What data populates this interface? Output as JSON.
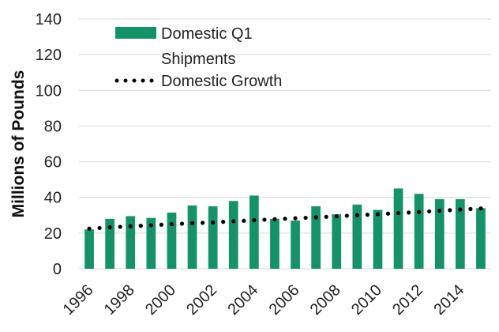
{
  "chart_data": {
    "type": "bar",
    "x": [
      1996,
      1997,
      1998,
      1999,
      2000,
      2001,
      2002,
      2003,
      2004,
      2005,
      2006,
      2007,
      2008,
      2009,
      2010,
      2011,
      2012,
      2013,
      2014,
      2015
    ],
    "x_tick_labels": [
      "1996",
      "1998",
      "2000",
      "2002",
      "2004",
      "2006",
      "2008",
      "2010",
      "2012",
      "2014"
    ],
    "series": [
      {
        "name": "Domestic Q1 Shipments",
        "type": "bar",
        "color": "#14936b",
        "values": [
          22,
          28,
          29.5,
          28.5,
          31.5,
          35.5,
          35,
          38,
          41,
          28,
          27,
          35,
          30.5,
          36,
          33,
          45,
          42,
          39,
          39,
          34
        ]
      },
      {
        "name": "Domestic Growth",
        "type": "line",
        "style": "dotted",
        "color": "#000000",
        "values": [
          22.5,
          23.2,
          23.8,
          24.4,
          25.0,
          25.5,
          26.0,
          26.6,
          27.2,
          27.8,
          28.3,
          28.8,
          29.4,
          30.0,
          30.6,
          31.2,
          31.8,
          32.5,
          33.2,
          33.8
        ]
      }
    ],
    "ylabel": "Millions of Pounds",
    "y_ticks": [
      0,
      20,
      40,
      60,
      80,
      100,
      120,
      140
    ],
    "ylim": [
      0,
      140
    ],
    "grid": "horizontal",
    "legend_position": "top-left",
    "legend": {
      "bar_label_line1": "Domestic Q1",
      "bar_label_line2": "Shipments",
      "line_label": "Domestic Growth"
    }
  }
}
